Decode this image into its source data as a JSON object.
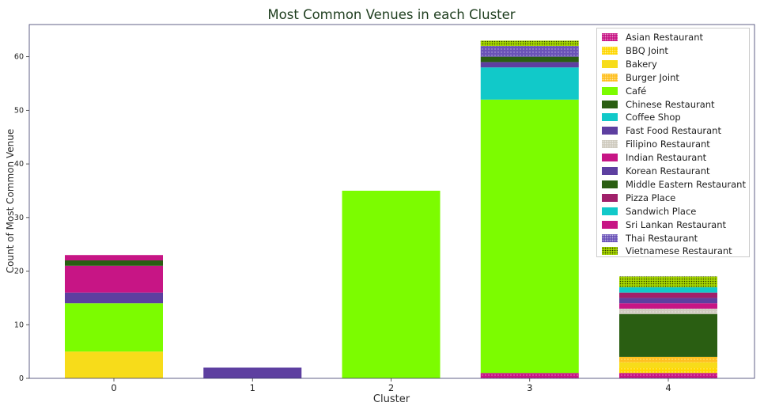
{
  "chart_data": {
    "type": "bar",
    "stacked": true,
    "title": "Most Common Venues in each Cluster",
    "xlabel": "Cluster",
    "ylabel": "Count of Most Common Venue",
    "categories": [
      "0",
      "1",
      "2",
      "3",
      "4"
    ],
    "ylim": [
      0,
      66
    ],
    "yticks": [
      0,
      10,
      20,
      30,
      40,
      50,
      60
    ],
    "grid": false,
    "legend_position": "top-right",
    "series": [
      {
        "name": "Asian Restaurant",
        "color": "#c71585",
        "hatch": "dots",
        "values": [
          0,
          0,
          0,
          1,
          1
        ]
      },
      {
        "name": "BBQ Joint",
        "color": "#ffd700",
        "hatch": "dots",
        "values": [
          0,
          0,
          0,
          0,
          1
        ]
      },
      {
        "name": "Bakery",
        "color": "#f7dc1a",
        "hatch": "none",
        "values": [
          5,
          0,
          0,
          0,
          1
        ]
      },
      {
        "name": "Burger Joint",
        "color": "#ffc020",
        "hatch": "dots",
        "values": [
          0,
          0,
          0,
          0,
          1
        ]
      },
      {
        "name": "Café",
        "color": "#7cfc00",
        "hatch": "none",
        "values": [
          9,
          0,
          35,
          51,
          0
        ]
      },
      {
        "name": "Chinese Restaurant",
        "color": "#2a5e12",
        "hatch": "none",
        "values": [
          0,
          0,
          0,
          0,
          8
        ]
      },
      {
        "name": "Coffee Shop",
        "color": "#11c9c9",
        "hatch": "none",
        "values": [
          0,
          0,
          0,
          6,
          0
        ]
      },
      {
        "name": "Fast Food Restaurant",
        "color": "#5d3fa0",
        "hatch": "none",
        "values": [
          2,
          2,
          0,
          1,
          0
        ]
      },
      {
        "name": "Filipino Restaurant",
        "color": "#cfcbbf",
        "hatch": "dots",
        "values": [
          0,
          0,
          0,
          0,
          1
        ]
      },
      {
        "name": "Indian Restaurant",
        "color": "#c71585",
        "hatch": "none",
        "values": [
          5,
          0,
          0,
          0,
          1
        ]
      },
      {
        "name": "Korean Restaurant",
        "color": "#5d3fa0",
        "hatch": "none",
        "values": [
          0,
          0,
          0,
          0,
          1
        ]
      },
      {
        "name": "Middle Eastern Restaurant",
        "color": "#2a5e12",
        "hatch": "none",
        "values": [
          1,
          0,
          0,
          1,
          0
        ]
      },
      {
        "name": "Pizza Place",
        "color": "#a0206a",
        "hatch": "none",
        "values": [
          0,
          0,
          0,
          0,
          1
        ]
      },
      {
        "name": "Sandwich Place",
        "color": "#11c9c9",
        "hatch": "none",
        "values": [
          0,
          0,
          0,
          0,
          1
        ]
      },
      {
        "name": "Sri Lankan Restaurant",
        "color": "#c71585",
        "hatch": "none",
        "values": [
          1,
          0,
          0,
          0,
          0
        ]
      },
      {
        "name": "Thai Restaurant",
        "color": "#6a52b8",
        "hatch": "dots",
        "values": [
          0,
          0,
          0,
          2,
          0
        ]
      },
      {
        "name": "Vietnamese Restaurant",
        "color": "#a8d800",
        "hatch": "dense",
        "values": [
          0,
          0,
          0,
          1,
          2
        ]
      }
    ]
  }
}
